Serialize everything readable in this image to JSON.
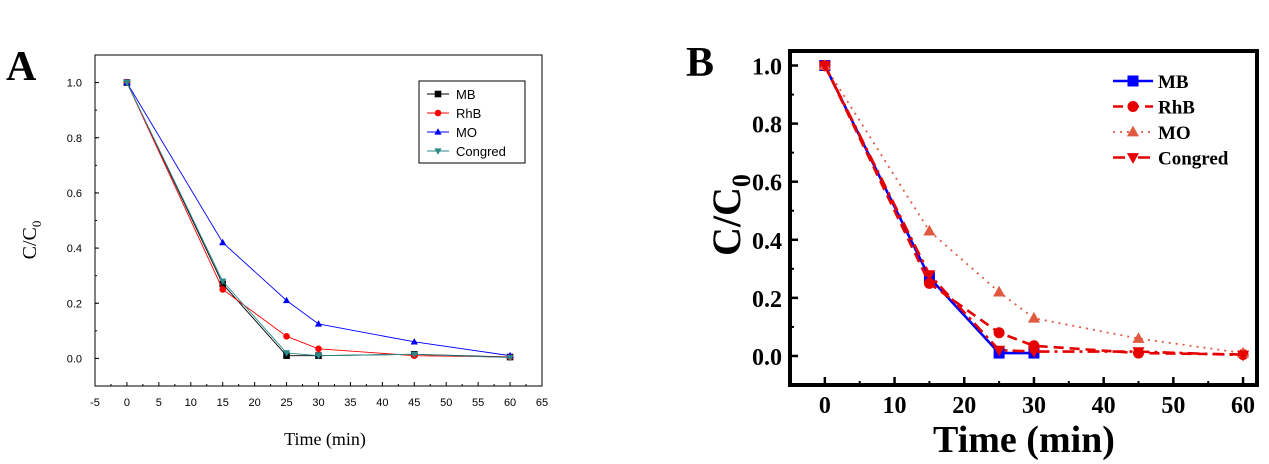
{
  "chart_data": [
    {
      "panel_label": "A",
      "type": "line",
      "xlabel": "Time (min)",
      "ylabel": "C/C",
      "ylabel_sub": "0",
      "xlim": [
        -5,
        65
      ],
      "ylim": [
        -0.1,
        1.1
      ],
      "xticks": [
        "-5",
        "0",
        "5",
        "10",
        "15",
        "20",
        "25",
        "30",
        "35",
        "40",
        "45",
        "50",
        "55",
        "60",
        "65"
      ],
      "yticks": [
        "0.0",
        "0.2",
        "0.4",
        "0.6",
        "0.8",
        "1.0"
      ],
      "legend_position": "top-right",
      "series": [
        {
          "name": "MB",
          "color": "#000000",
          "marker": "square",
          "x": [
            0,
            15,
            25,
            30,
            45,
            60
          ],
          "y": [
            1.0,
            0.27,
            0.01,
            0.01,
            0.015,
            0.005
          ]
        },
        {
          "name": "RhB",
          "color": "#ff0000",
          "marker": "circle",
          "x": [
            0,
            15,
            25,
            30,
            45,
            60
          ],
          "y": [
            1.0,
            0.25,
            0.08,
            0.035,
            0.01,
            0.005
          ]
        },
        {
          "name": "MO",
          "color": "#0000ff",
          "marker": "triangle-up",
          "x": [
            0,
            15,
            25,
            30,
            45,
            60
          ],
          "y": [
            1.0,
            0.42,
            0.21,
            0.125,
            0.06,
            0.01
          ]
        },
        {
          "name": "Congred",
          "color": "#2a8a8a",
          "marker": "triangle-down",
          "x": [
            0,
            15,
            25,
            30,
            45,
            60
          ],
          "y": [
            1.0,
            0.28,
            0.02,
            0.01,
            0.015,
            0.003
          ]
        }
      ]
    },
    {
      "panel_label": "B",
      "type": "line",
      "xlabel": "Time (min)",
      "ylabel": "C/C",
      "ylabel_sub": "0",
      "xlim": [
        -5,
        62
      ],
      "ylim": [
        -0.1,
        1.05
      ],
      "xticks": [
        "0",
        "10",
        "20",
        "30",
        "40",
        "50",
        "60"
      ],
      "yticks": [
        "0.0",
        "0.2",
        "0.4",
        "0.6",
        "0.8",
        "1.0"
      ],
      "legend_position": "top-right",
      "series": [
        {
          "name": "MB",
          "color": "#0000ff",
          "marker": "square",
          "dash": "solid",
          "x": [
            0,
            15,
            25,
            30
          ],
          "y": [
            1.0,
            0.27,
            0.01,
            0.01
          ]
        },
        {
          "name": "RhB",
          "color": "#e60000",
          "marker": "circle",
          "dash": "dashed",
          "x": [
            0,
            15,
            25,
            30,
            45,
            60
          ],
          "y": [
            1.0,
            0.25,
            0.08,
            0.035,
            0.01,
            0.005
          ]
        },
        {
          "name": "MO",
          "color": "#e05a40",
          "marker": "triangle-up",
          "dash": "dotted",
          "x": [
            0,
            15,
            25,
            30,
            45,
            60
          ],
          "y": [
            1.0,
            0.43,
            0.22,
            0.13,
            0.06,
            0.01
          ]
        },
        {
          "name": "Congred",
          "color": "#e60000",
          "marker": "triangle-down",
          "dash": "dashdot",
          "x": [
            0,
            15,
            25,
            30,
            45,
            60
          ],
          "y": [
            1.0,
            0.28,
            0.02,
            0.015,
            0.015,
            0.003
          ]
        }
      ]
    }
  ]
}
